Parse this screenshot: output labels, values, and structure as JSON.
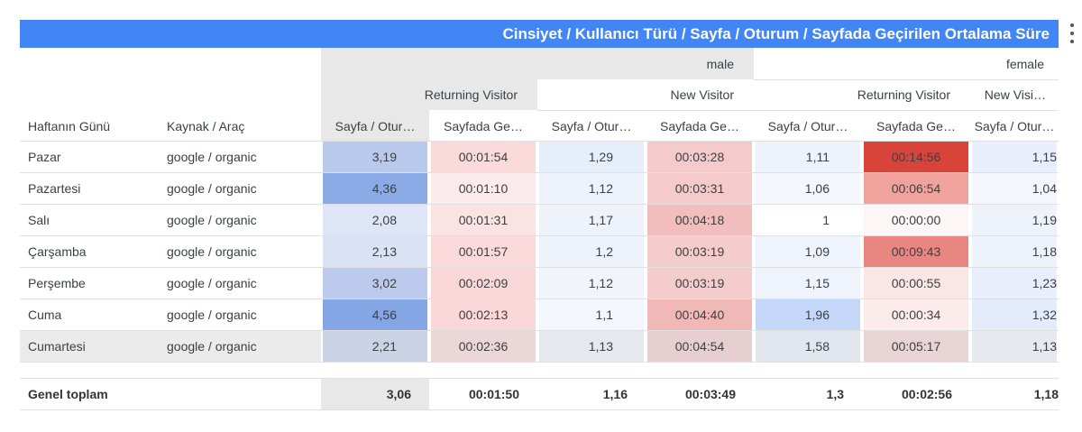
{
  "title": "Cinsiyet / Kullanıcı Türü / Sayfa / Oturum / Sayfada Geçirilen Ortalama Süre",
  "gender_headers": [
    "male",
    "female"
  ],
  "visitor_headers": [
    "Returning Visitor",
    "New Visitor",
    "Returning Visitor",
    "New Visi…"
  ],
  "row_headers": [
    "Haftanın Günü",
    "Kaynak / Araç"
  ],
  "metric_headers": [
    "Sayfa / Otur…",
    "Sayfada Ge…",
    "Sayfa / Otur…",
    "Sayfada Ge…",
    "Sayfa / Otur…",
    "Sayfada Ge…",
    "Sayfa / Otur…"
  ],
  "rows": [
    {
      "day": "Pazar",
      "source": "google / organic",
      "values": [
        "3,19",
        "00:01:54",
        "1,29",
        "00:03:28",
        "1,11",
        "00:14:56",
        "1,15"
      ]
    },
    {
      "day": "Pazartesi",
      "source": "google / organic",
      "values": [
        "4,36",
        "00:01:10",
        "1,12",
        "00:03:31",
        "1,06",
        "00:06:54",
        "1,04"
      ]
    },
    {
      "day": "Salı",
      "source": "google / organic",
      "values": [
        "2,08",
        "00:01:31",
        "1,17",
        "00:04:18",
        "1",
        "00:00:00",
        "1,19"
      ]
    },
    {
      "day": "Çarşamba",
      "source": "google / organic",
      "values": [
        "2,13",
        "00:01:57",
        "1,2",
        "00:03:19",
        "1,09",
        "00:09:43",
        "1,18"
      ]
    },
    {
      "day": "Perşembe",
      "source": "google / organic",
      "values": [
        "3,02",
        "00:02:09",
        "1,12",
        "00:03:19",
        "1,15",
        "00:00:55",
        "1,23"
      ]
    },
    {
      "day": "Cuma",
      "source": "google / organic",
      "values": [
        "4,56",
        "00:02:13",
        "1,1",
        "00:04:40",
        "1,96",
        "00:00:34",
        "1,32"
      ]
    },
    {
      "day": "Cumartesi",
      "source": "google / organic",
      "values": [
        "2,21",
        "00:02:36",
        "1,13",
        "00:04:54",
        "1,58",
        "00:05:17",
        "1,13"
      ]
    }
  ],
  "totals": {
    "label": "Genel toplam",
    "values": [
      "3,06",
      "00:01:50",
      "1,16",
      "00:03:49",
      "1,3",
      "00:02:56",
      "1,18"
    ]
  },
  "colors": {
    "banner": "#4285f4",
    "header_grey": "#e8e8e8",
    "row_highlight": "#ebebeb",
    "blue_scale_max": "#7d9fdf",
    "red_scale_max": "#db3c30"
  },
  "cell_colors": [
    [
      "#b9c9ec",
      "#fadadb",
      "#e6eefa",
      "#f5caca",
      "#eef3fb",
      "#d9443a",
      "#e8eefb"
    ],
    [
      "#8cabe6",
      "#fcebec",
      "#eef3fb",
      "#f5caca",
      "#f3f6fc",
      "#f0a29c",
      "#f3f6fc"
    ],
    [
      "#dde5f6",
      "#fbe2e3",
      "#eef3fb",
      "#f1bdbd",
      "#ffffff",
      "#fdf6f6",
      "#eef3fb"
    ],
    [
      "#d9e3f5",
      "#fadadb",
      "#eef3fb",
      "#f5cccc",
      "#eff3fb",
      "#e88781",
      "#eef3fb"
    ],
    [
      "#bccbed",
      "#fad7d8",
      "#f1f5fb",
      "#f5cccc",
      "#eff3fb",
      "#fbe6e6",
      "#e8eefb"
    ],
    [
      "#84a6e5",
      "#fad7d8",
      "#f3f6fc",
      "#f1b8b8",
      "#c5d7f8",
      "#fcebeb",
      "#e4ebfa"
    ],
    [
      "#cad3e6",
      "#ebd6d8",
      "#e5e8ee",
      "#e7cfd1",
      "#e1e6ef",
      "#e8d3d5",
      "#e6e9ee"
    ]
  ],
  "totals_colors": [
    "#e8e8e8",
    "#ffffff",
    "#ffffff",
    "#ffffff",
    "#ffffff",
    "#ffffff",
    "#ffffff"
  ]
}
